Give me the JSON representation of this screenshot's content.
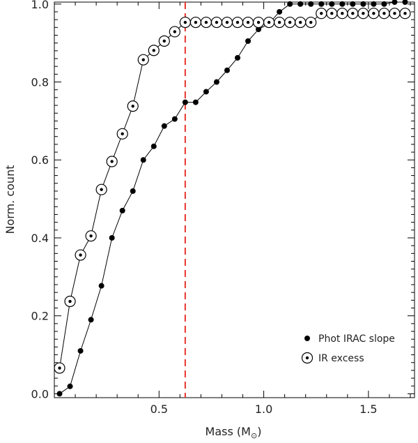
{
  "chart_data": {
    "type": "line",
    "xlabel_text": "Mass (M",
    "xlabel_sub": "⊙",
    "xlabel_close": ")",
    "ylabel": "Norm. count",
    "xlim": [
      0.0,
      1.72
    ],
    "ylim": [
      -0.01,
      1.005
    ],
    "x_ticks": [
      0.5,
      1.0,
      1.5
    ],
    "x_tick_labels": [
      "0.5",
      "1.0",
      "1.5"
    ],
    "y_ticks": [
      0.0,
      0.2,
      0.4,
      0.6,
      0.8,
      1.0
    ],
    "y_tick_labels": [
      "0.0",
      "0.2",
      "0.4",
      "0.6",
      "0.8",
      "1.0"
    ],
    "vline": {
      "x": 0.625,
      "color": "#e8332b",
      "style": "dashed"
    },
    "legend_position": "bottom-right",
    "series": [
      {
        "name": "Phot IRAC slope",
        "marker": "filled-circle",
        "x": [
          0.025,
          0.075,
          0.125,
          0.175,
          0.225,
          0.275,
          0.325,
          0.375,
          0.425,
          0.475,
          0.525,
          0.575,
          0.625,
          0.675,
          0.725,
          0.775,
          0.825,
          0.875,
          0.925,
          0.975,
          1.025,
          1.075,
          1.125,
          1.175,
          1.225,
          1.275,
          1.325,
          1.375,
          1.425,
          1.475,
          1.525,
          1.575,
          1.625,
          1.675
        ],
        "y": [
          0.0,
          0.019,
          0.11,
          0.19,
          0.277,
          0.4,
          0.47,
          0.52,
          0.6,
          0.635,
          0.687,
          0.705,
          0.748,
          0.748,
          0.775,
          0.8,
          0.83,
          0.862,
          0.905,
          0.935,
          0.95,
          0.98,
          1.0,
          1.0,
          1.0,
          1.0,
          1.0,
          1.0,
          1.0,
          1.0,
          1.0,
          1.0,
          1.005,
          1.005
        ]
      },
      {
        "name": "IR excess",
        "marker": "circled-dot",
        "x": [
          0.025,
          0.075,
          0.125,
          0.175,
          0.225,
          0.275,
          0.325,
          0.375,
          0.425,
          0.475,
          0.525,
          0.575,
          0.625,
          0.675,
          0.725,
          0.775,
          0.825,
          0.875,
          0.925,
          0.975,
          1.025,
          1.075,
          1.125,
          1.175,
          1.225,
          1.275,
          1.325,
          1.375,
          1.425,
          1.475,
          1.525,
          1.575,
          1.625,
          1.675
        ],
        "y": [
          0.066,
          0.237,
          0.356,
          0.405,
          0.524,
          0.596,
          0.667,
          0.738,
          0.857,
          0.881,
          0.905,
          0.929,
          0.953,
          0.953,
          0.953,
          0.953,
          0.953,
          0.953,
          0.953,
          0.953,
          0.953,
          0.953,
          0.953,
          0.953,
          0.953,
          0.976,
          0.976,
          0.976,
          0.976,
          0.976,
          0.976,
          0.976,
          0.976,
          0.976
        ]
      }
    ],
    "colors": {
      "line": "#000000",
      "vline": "#e8332b",
      "frame": "#000000"
    }
  }
}
